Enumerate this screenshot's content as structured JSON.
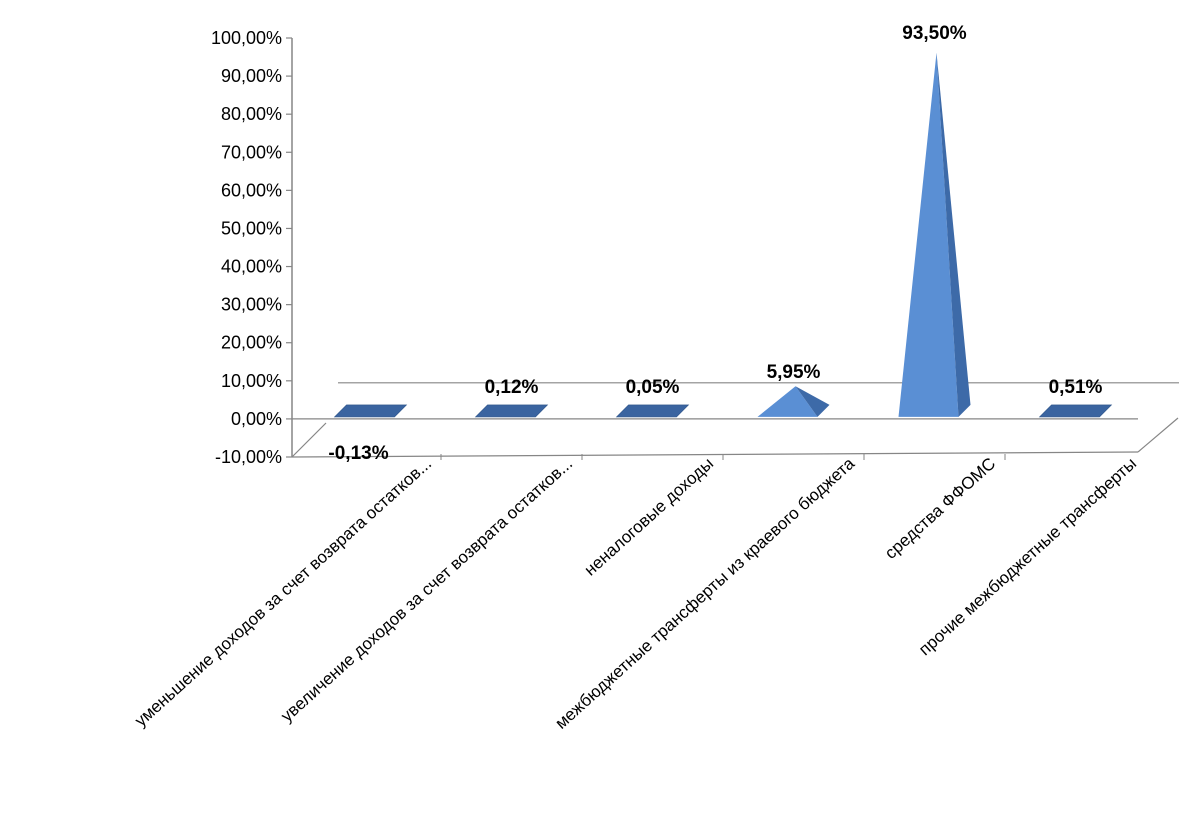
{
  "chart_data": {
    "type": "bar",
    "categories": [
      "уменьшение доходов за счет возврата остатков...",
      "увеличение доходов за счет возврата остатков...",
      "неналоговые доходы",
      "межбюджетные трансферты из краевого бюджета",
      "средства ФФОМС",
      "прочие межбюджетные трансферты"
    ],
    "values": [
      -0.13,
      0.12,
      0.05,
      5.95,
      93.5,
      0.51
    ],
    "value_labels": [
      "-0,13%",
      "0,12%",
      "0,05%",
      "5,95%",
      "93,50%",
      "0,51%"
    ],
    "ytick_labels": [
      "100,00%",
      "90,00%",
      "80,00%",
      "70,00%",
      "60,00%",
      "50,00%",
      "40,00%",
      "30,00%",
      "20,00%",
      "10,00%",
      "0,00%",
      "-10,00%"
    ],
    "ylim": [
      -10,
      100
    ],
    "shape": "pyramid",
    "three_d": true,
    "grid": false,
    "legend": "none",
    "colors": {
      "face_light": "#5a8fd4",
      "face_dark": "#3d6aa8",
      "base": "#3a64a0",
      "axis": "#868686"
    }
  }
}
